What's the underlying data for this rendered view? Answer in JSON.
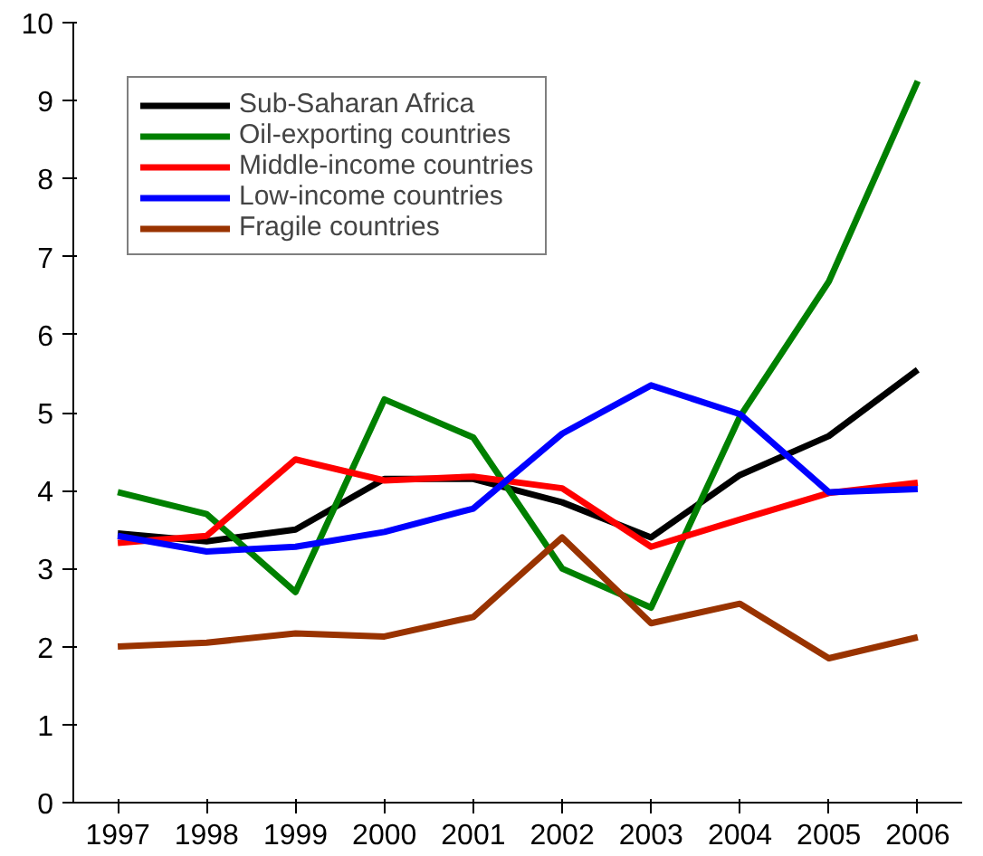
{
  "chart_data": {
    "type": "line",
    "categories": [
      "1997",
      "1998",
      "1999",
      "2000",
      "2001",
      "2002",
      "2003",
      "2004",
      "2005",
      "2006"
    ],
    "ylim": [
      0,
      10
    ],
    "yticks": [
      0,
      1,
      2,
      3,
      4,
      5,
      6,
      7,
      8,
      9,
      10
    ],
    "grid": false,
    "legend": "top left",
    "series": [
      {
        "name": "Sub-Saharan Africa",
        "color": "#000000",
        "values": [
          3.45,
          3.35,
          3.5,
          4.15,
          4.15,
          3.85,
          3.4,
          4.2,
          4.7,
          5.55
        ]
      },
      {
        "name": "Oil-exporting countries",
        "color": "#008000",
        "values": [
          3.98,
          3.7,
          2.7,
          5.17,
          4.68,
          3.0,
          2.5,
          4.95,
          6.68,
          9.25
        ]
      },
      {
        "name": "Middle-income countries",
        "color": "#ff0000",
        "values": [
          3.33,
          3.42,
          4.4,
          4.13,
          4.18,
          4.03,
          3.28,
          3.63,
          3.97,
          4.1
        ]
      },
      {
        "name": "Low-income countries",
        "color": "#0000ff",
        "values": [
          3.42,
          3.22,
          3.28,
          3.47,
          3.77,
          4.73,
          5.35,
          4.98,
          3.98,
          4.02
        ]
      },
      {
        "name": "Fragile countries",
        "color": "#993300",
        "values": [
          2.0,
          2.05,
          2.17,
          2.13,
          2.38,
          3.4,
          2.3,
          2.55,
          1.85,
          2.12
        ]
      }
    ]
  }
}
